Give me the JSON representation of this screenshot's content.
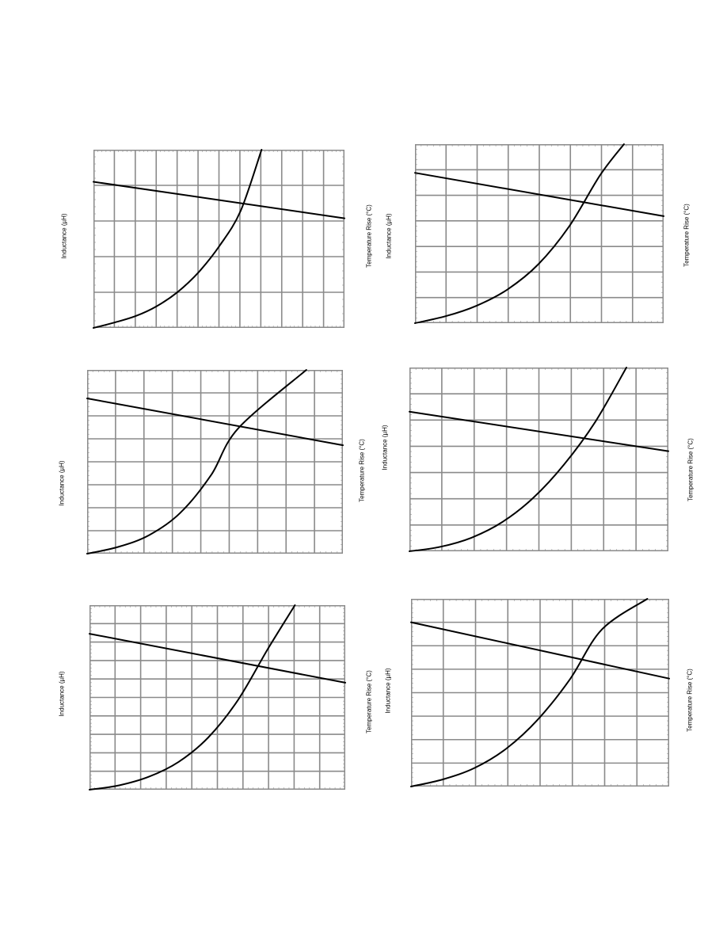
{
  "labels": {
    "inductance": "Inductance (µH)",
    "temperature": "Temperature Rise (°C)"
  },
  "colors": {
    "major_grid": "#8a8a8a",
    "minor_tick": "#999999",
    "curve": "#000000",
    "background": "#ffffff"
  },
  "chart_data": [
    {
      "type": "line",
      "ylabel": "Inductance (µH)",
      "y2label": "Temperature Rise (°C)",
      "grid": true,
      "xgrid": 12,
      "ygrid": 5,
      "series": [
        {
          "values": [
            [
              0,
              0.82
            ],
            [
              1,
              0.615
            ]
          ]
        },
        {
          "values": [
            [
              0,
              0
            ],
            [
              0.0837,
              0.0302
            ],
            [
              0.1675,
              0.0662
            ],
            [
              0.2512,
              0.1212
            ],
            [
              0.3349,
              0.201
            ],
            [
              0.4186,
              0.3121
            ],
            [
              0.5024,
              0.4613
            ],
            [
              0.5861,
              0.6562
            ],
            [
              0.6698,
              1.0
            ]
          ]
        }
      ]
    },
    {
      "type": "line",
      "ylabel": "Inductance (µH)",
      "y2label": "Temperature Rise (°C)",
      "grid": true,
      "xgrid": 9,
      "ygrid": 8,
      "series": [
        {
          "values": [
            [
              0,
              0.845
            ],
            [
              1,
              0.59
            ]
          ]
        },
        {
          "values": [
            [
              0,
              0
            ],
            [
              0.1212,
              0.0365
            ],
            [
              0.2424,
              0.1007
            ],
            [
              0.3636,
              0.2211
            ],
            [
              0.4848,
              0.4279
            ],
            [
              0.5911,
              0.6824
            ],
            [
              0.8571,
              1.0
            ]
          ]
        }
      ]
    },
    {
      "type": "line",
      "ylabel": "Inductance (µH)",
      "y2label": "Temperature Rise (°C)",
      "grid": true,
      "xgrid": 10,
      "ygrid": 10,
      "series": [
        {
          "values": [
            [
              0,
              0.845
            ],
            [
              1,
              0.58
            ]
          ]
        },
        {
          "values": [
            [
              0,
              0
            ],
            [
              0.1161,
              0.0237
            ],
            [
              0.2323,
              0.0704
            ],
            [
              0.3484,
              0.1508
            ],
            [
              0.4645,
              0.2833
            ],
            [
              0.5806,
              0.4857
            ],
            [
              0.6967,
              0.7612
            ],
            [
              0.8032,
              1.0
            ]
          ]
        }
      ]
    },
    {
      "type": "line",
      "ylabel": "Inductance (µH)",
      "y2label": "Temperature Rise (°C)",
      "grid": true,
      "xgrid": 8,
      "ygrid": 7,
      "series": [
        {
          "values": [
            [
              0,
              0.84
            ],
            [
              1,
              0.598
            ]
          ]
        },
        {
          "values": [
            [
              0,
              0
            ],
            [
              0.1241,
              0.0392
            ],
            [
              0.2482,
              0.0978
            ],
            [
              0.3723,
              0.1886
            ],
            [
              0.4964,
              0.3297
            ],
            [
              0.6205,
              0.5413
            ],
            [
              0.7447,
              0.8268
            ],
            [
              0.8404,
              1.0
            ]
          ]
        }
      ]
    },
    {
      "type": "line",
      "ylabel": "Inductance (µH)",
      "y2label": "Temperature Rise (°C)",
      "grid": true,
      "xgrid": 8,
      "ygrid": 7,
      "series": [
        {
          "values": [
            [
              0,
              0.76
            ],
            [
              1,
              0.545
            ]
          ]
        },
        {
          "values": [
            [
              0,
              0
            ],
            [
              0.1197,
              0.0245
            ],
            [
              0.2393,
              0.0739
            ],
            [
              0.359,
              0.1593
            ],
            [
              0.4787,
              0.2914
            ],
            [
              0.5983,
              0.4743
            ],
            [
              0.718,
              0.7051
            ],
            [
              0.8378,
              1.0
            ]
          ]
        }
      ]
    },
    {
      "type": "line",
      "ylabel": "Inductance (µH)",
      "y2label": "Temperature Rise (°C)",
      "grid": true,
      "xgrid": 8,
      "ygrid": 8,
      "series": [
        {
          "values": [
            [
              0,
              0.875
            ],
            [
              1,
              0.575
            ]
          ]
        },
        {
          "values": [
            [
              0,
              0
            ],
            [
              0.1232,
              0.0381
            ],
            [
              0.2464,
              0.0993
            ],
            [
              0.3696,
              0.2025
            ],
            [
              0.4928,
              0.3597
            ],
            [
              0.616,
              0.5721
            ],
            [
              0.7392,
              0.8369
            ],
            [
              0.9153,
              1.0
            ]
          ]
        }
      ]
    }
  ]
}
